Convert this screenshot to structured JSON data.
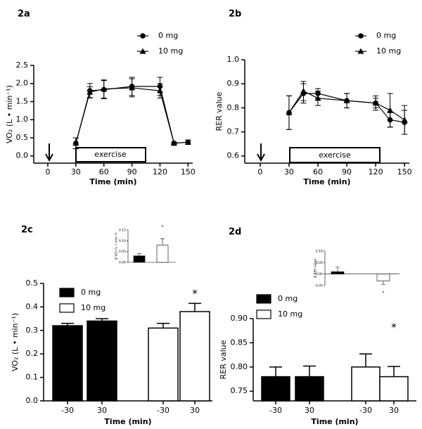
{
  "chart_data": [
    {
      "type": "line",
      "title": "2a",
      "x_label": "Time (min)",
      "y_label": "VO₂ (L • min⁻¹)",
      "annotation": "exercise",
      "x": [
        30,
        45,
        60,
        90,
        120,
        135,
        150
      ],
      "series": [
        {
          "name": "0 mg",
          "color": "#000000",
          "marker": "circle",
          "values": [
            0.35,
            1.8,
            1.83,
            1.92,
            1.92,
            0.35,
            0.38
          ],
          "errors": [
            0.15,
            0.2,
            0.25,
            0.25,
            0.25,
            0.03,
            0.06
          ]
        },
        {
          "name": "10 mg",
          "color": "#000000",
          "marker": "triangle",
          "values": [
            0.35,
            1.76,
            1.85,
            1.88,
            1.8,
            0.35,
            0.38
          ],
          "errors": [
            0.15,
            0.15,
            0.25,
            0.25,
            0.2,
            0.03,
            0.06
          ]
        }
      ],
      "xlim": [
        -15,
        155
      ],
      "xticks": [
        0,
        30,
        60,
        90,
        120,
        150
      ],
      "ylim": [
        -0.2,
        2.5
      ],
      "yticks": [
        {
          "value": 0,
          "label": "0.0"
        },
        0.5,
        {
          "value": 1,
          "label": "1.0"
        },
        1.5,
        {
          "value": 2,
          "label": "2.0"
        },
        2.5
      ]
    },
    {
      "type": "line",
      "title": "2b",
      "x_label": "Time (min)",
      "y_label": "RER value",
      "annotation": "exercise",
      "x": [
        30,
        45,
        60,
        90,
        120,
        135,
        150
      ],
      "series": [
        {
          "name": "0 mg",
          "color": "#000000",
          "marker": "circle",
          "values": [
            0.78,
            0.86,
            0.86,
            0.83,
            0.82,
            0.75,
            0.74
          ],
          "errors": [
            0.07,
            0.04,
            0.02,
            0.03,
            0.02,
            0.03,
            0.05
          ]
        },
        {
          "name": "10 mg",
          "color": "#000000",
          "marker": "triangle",
          "values": [
            0.78,
            0.87,
            0.84,
            0.83,
            0.82,
            0.79,
            0.75
          ],
          "errors": [
            0.07,
            0.04,
            0.03,
            0.03,
            0.03,
            0.07,
            0.06
          ]
        }
      ],
      "xlim": [
        -16,
        155
      ],
      "xticks": [
        0,
        30,
        60,
        90,
        120,
        150
      ],
      "ylim": [
        0.57,
        1.0
      ],
      "yticks": [
        0.6,
        0.7,
        0.8,
        0.9,
        {
          "value": 1,
          "label": "1.0"
        }
      ]
    },
    {
      "type": "bar",
      "title": "2c",
      "x_label": "Time (min)",
      "y_label": "VO₂ (L • min⁻¹)",
      "annotation": "*",
      "categories": [
        "-30",
        "30",
        "-30",
        "30"
      ],
      "series": [
        {
          "name": "0 mg",
          "color": "#000000",
          "values": [
            0.32,
            0.34,
            null,
            null
          ],
          "errors": [
            0.01,
            0.01,
            null,
            null
          ]
        },
        {
          "name": "10 mg",
          "color": "#ffffff",
          "values": [
            null,
            null,
            0.31,
            0.38
          ],
          "errors": [
            null,
            null,
            0.02,
            0.035
          ]
        }
      ],
      "ylim": [
        0,
        0.5
      ],
      "yticks": [
        {
          "value": 0,
          "label": "0.0"
        },
        0.1,
        0.2,
        0.3,
        0.4,
        0.5
      ],
      "inset": {
        "y_label": "Δ VO₂ (L • min⁻¹)",
        "annotation": "*",
        "values": [
          0.03,
          0.08
        ],
        "errors": [
          0.01,
          0.03
        ],
        "colors": [
          "#000000",
          "#ffffff"
        ],
        "ylim": [
          0,
          0.15
        ],
        "yticks": [
          {
            "value": 0,
            "label": "0.00"
          },
          0.05,
          {
            "value": 0.1,
            "label": "0.10"
          },
          0.15
        ]
      }
    },
    {
      "type": "bar",
      "title": "2d",
      "x_label": "Time (min)",
      "y_label": "RER value",
      "annotation": "*",
      "categories": [
        "-30",
        "30",
        "-30",
        "30"
      ],
      "series": [
        {
          "name": "0 mg",
          "color": "#000000",
          "values": [
            0.78,
            0.78,
            null,
            null
          ],
          "errors": [
            0.02,
            0.022,
            null,
            null
          ]
        },
        {
          "name": "10 mg",
          "color": "#ffffff",
          "values": [
            null,
            null,
            0.8,
            0.78
          ],
          "errors": [
            null,
            null,
            0.027,
            0.021
          ]
        }
      ],
      "ylim": [
        0.73,
        0.9
      ],
      "yticks": [
        0.75,
        {
          "value": 0.8,
          "label": "0.80"
        },
        0.85,
        {
          "value": 0.9,
          "label": "0.90"
        }
      ],
      "inset": {
        "y_label": "Δ RER value",
        "annotation": "*",
        "values": [
          0.01,
          -0.03
        ],
        "errors": [
          0.02,
          0.015
        ],
        "colors": [
          "#000000",
          "#ffffff"
        ],
        "ylim": [
          -0.05,
          0.1
        ],
        "yticks": [
          -0.05,
          {
            "value": 0,
            "label": "0.00"
          },
          0.05,
          {
            "value": 0.1,
            "label": "0.10"
          }
        ]
      }
    }
  ]
}
